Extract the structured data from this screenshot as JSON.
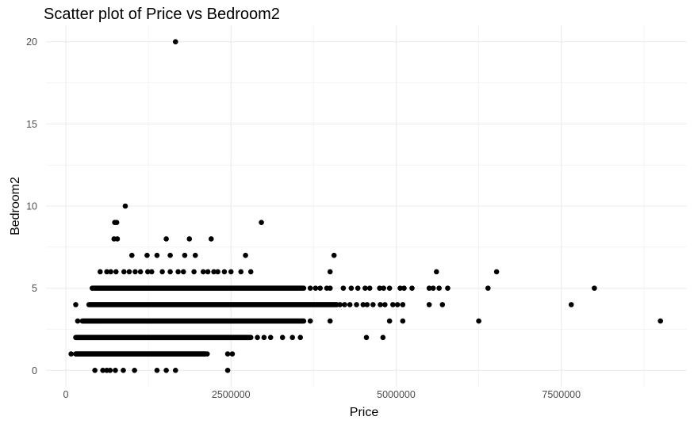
{
  "chart_data": {
    "type": "scatter",
    "title": "Scatter plot of Price vs Bedroom2",
    "xlabel": "Price",
    "ylabel": "Bedroom2",
    "xlim": [
      -300000,
      9400000
    ],
    "ylim": [
      -1,
      21
    ],
    "x_ticks": [
      0,
      2500000,
      5000000,
      7500000
    ],
    "x_tick_labels": [
      "0",
      "2500000",
      "5000000",
      "7500000"
    ],
    "y_ticks": [
      0,
      5,
      10,
      15,
      20
    ],
    "y_tick_labels": [
      "0",
      "5",
      "10",
      "15",
      "20"
    ],
    "grid": true,
    "legend": "none",
    "point_color": "#000000",
    "segments": [
      {
        "y": 1,
        "x_min": 150000,
        "x_max": 2100000
      },
      {
        "y": 2,
        "x_min": 150000,
        "x_max": 2800000
      },
      {
        "y": 3,
        "x_min": 250000,
        "x_max": 3600000
      },
      {
        "y": 4,
        "x_min": 350000,
        "x_max": 4100000
      },
      {
        "y": 5,
        "x_min": 400000,
        "x_max": 3600000
      }
    ],
    "points": [
      {
        "x": 1660000,
        "y": 20
      },
      {
        "x": 900000,
        "y": 10
      },
      {
        "x": 2960000,
        "y": 9
      },
      {
        "x": 740000,
        "y": 9
      },
      {
        "x": 770000,
        "y": 9
      },
      {
        "x": 730000,
        "y": 8
      },
      {
        "x": 780000,
        "y": 8
      },
      {
        "x": 1520000,
        "y": 8
      },
      {
        "x": 1870000,
        "y": 8
      },
      {
        "x": 2200000,
        "y": 8
      },
      {
        "x": 1000000,
        "y": 7
      },
      {
        "x": 1230000,
        "y": 7
      },
      {
        "x": 1380000,
        "y": 7
      },
      {
        "x": 1580000,
        "y": 7
      },
      {
        "x": 1800000,
        "y": 7
      },
      {
        "x": 1960000,
        "y": 7
      },
      {
        "x": 2720000,
        "y": 7
      },
      {
        "x": 4060000,
        "y": 7
      },
      {
        "x": 520000,
        "y": 6
      },
      {
        "x": 620000,
        "y": 6
      },
      {
        "x": 680000,
        "y": 6
      },
      {
        "x": 760000,
        "y": 6
      },
      {
        "x": 880000,
        "y": 6
      },
      {
        "x": 960000,
        "y": 6
      },
      {
        "x": 1050000,
        "y": 6
      },
      {
        "x": 1130000,
        "y": 6
      },
      {
        "x": 1240000,
        "y": 6
      },
      {
        "x": 1300000,
        "y": 6
      },
      {
        "x": 1460000,
        "y": 6
      },
      {
        "x": 1580000,
        "y": 6
      },
      {
        "x": 1700000,
        "y": 6
      },
      {
        "x": 1780000,
        "y": 6
      },
      {
        "x": 1940000,
        "y": 6
      },
      {
        "x": 2080000,
        "y": 6
      },
      {
        "x": 2150000,
        "y": 6
      },
      {
        "x": 2240000,
        "y": 6
      },
      {
        "x": 2300000,
        "y": 6
      },
      {
        "x": 2400000,
        "y": 6
      },
      {
        "x": 2500000,
        "y": 6
      },
      {
        "x": 2650000,
        "y": 6
      },
      {
        "x": 2800000,
        "y": 6
      },
      {
        "x": 4000000,
        "y": 6
      },
      {
        "x": 5610000,
        "y": 6
      },
      {
        "x": 6520000,
        "y": 6
      },
      {
        "x": 3700000,
        "y": 5
      },
      {
        "x": 3780000,
        "y": 5
      },
      {
        "x": 3850000,
        "y": 5
      },
      {
        "x": 3950000,
        "y": 5
      },
      {
        "x": 4000000,
        "y": 5
      },
      {
        "x": 4200000,
        "y": 5
      },
      {
        "x": 4320000,
        "y": 5
      },
      {
        "x": 4420000,
        "y": 5
      },
      {
        "x": 4530000,
        "y": 5
      },
      {
        "x": 4600000,
        "y": 5
      },
      {
        "x": 4750000,
        "y": 5
      },
      {
        "x": 4810000,
        "y": 5
      },
      {
        "x": 4900000,
        "y": 5
      },
      {
        "x": 5060000,
        "y": 5
      },
      {
        "x": 5120000,
        "y": 5
      },
      {
        "x": 5240000,
        "y": 5
      },
      {
        "x": 5500000,
        "y": 5
      },
      {
        "x": 5560000,
        "y": 5
      },
      {
        "x": 5650000,
        "y": 5
      },
      {
        "x": 5780000,
        "y": 5
      },
      {
        "x": 6390000,
        "y": 5
      },
      {
        "x": 8000000,
        "y": 5
      },
      {
        "x": 150000,
        "y": 4
      },
      {
        "x": 4150000,
        "y": 4
      },
      {
        "x": 4220000,
        "y": 4
      },
      {
        "x": 4300000,
        "y": 4
      },
      {
        "x": 4400000,
        "y": 4
      },
      {
        "x": 4500000,
        "y": 4
      },
      {
        "x": 4560000,
        "y": 4
      },
      {
        "x": 4650000,
        "y": 4
      },
      {
        "x": 4760000,
        "y": 4
      },
      {
        "x": 4830000,
        "y": 4
      },
      {
        "x": 4950000,
        "y": 4
      },
      {
        "x": 5020000,
        "y": 4
      },
      {
        "x": 5100000,
        "y": 4
      },
      {
        "x": 5500000,
        "y": 4
      },
      {
        "x": 5700000,
        "y": 4
      },
      {
        "x": 7650000,
        "y": 4
      },
      {
        "x": 180000,
        "y": 3
      },
      {
        "x": 3700000,
        "y": 3
      },
      {
        "x": 4000000,
        "y": 3
      },
      {
        "x": 4900000,
        "y": 3
      },
      {
        "x": 5100000,
        "y": 3
      },
      {
        "x": 6250000,
        "y": 3
      },
      {
        "x": 9000000,
        "y": 3
      },
      {
        "x": 2900000,
        "y": 2
      },
      {
        "x": 3000000,
        "y": 2
      },
      {
        "x": 3100000,
        "y": 2
      },
      {
        "x": 3280000,
        "y": 2
      },
      {
        "x": 3430000,
        "y": 2
      },
      {
        "x": 3550000,
        "y": 2
      },
      {
        "x": 4550000,
        "y": 2
      },
      {
        "x": 4800000,
        "y": 2
      },
      {
        "x": 80000,
        "y": 1
      },
      {
        "x": 2110000,
        "y": 1
      },
      {
        "x": 2140000,
        "y": 1
      },
      {
        "x": 2450000,
        "y": 1
      },
      {
        "x": 2520000,
        "y": 1
      },
      {
        "x": 440000,
        "y": 0
      },
      {
        "x": 560000,
        "y": 0
      },
      {
        "x": 620000,
        "y": 0
      },
      {
        "x": 670000,
        "y": 0
      },
      {
        "x": 750000,
        "y": 0
      },
      {
        "x": 870000,
        "y": 0
      },
      {
        "x": 1040000,
        "y": 0
      },
      {
        "x": 1380000,
        "y": 0
      },
      {
        "x": 1520000,
        "y": 0
      },
      {
        "x": 1660000,
        "y": 0
      },
      {
        "x": 2450000,
        "y": 0
      }
    ]
  }
}
